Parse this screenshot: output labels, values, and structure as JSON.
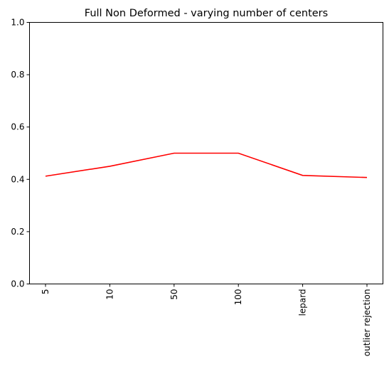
{
  "chart_data": {
    "type": "line",
    "title": "Full Non Deformed - varying number of centers",
    "xlabel": "",
    "ylabel": "",
    "categories": [
      "5",
      "10",
      "50",
      "100",
      "lepard",
      "outlier rejection"
    ],
    "series": [
      {
        "values": [
          0.412,
          0.45,
          0.5,
          0.5,
          0.415,
          0.407
        ],
        "color": "#ff0000"
      }
    ],
    "ylim": [
      0,
      1
    ],
    "yticks": [
      "0.0",
      "0.2",
      "0.4",
      "0.6",
      "0.8",
      "1.0"
    ],
    "ytick_values": [
      0,
      0.2,
      0.4,
      0.6,
      0.8,
      1.0
    ],
    "grid": false,
    "x_tick_rotation": "vertical"
  }
}
